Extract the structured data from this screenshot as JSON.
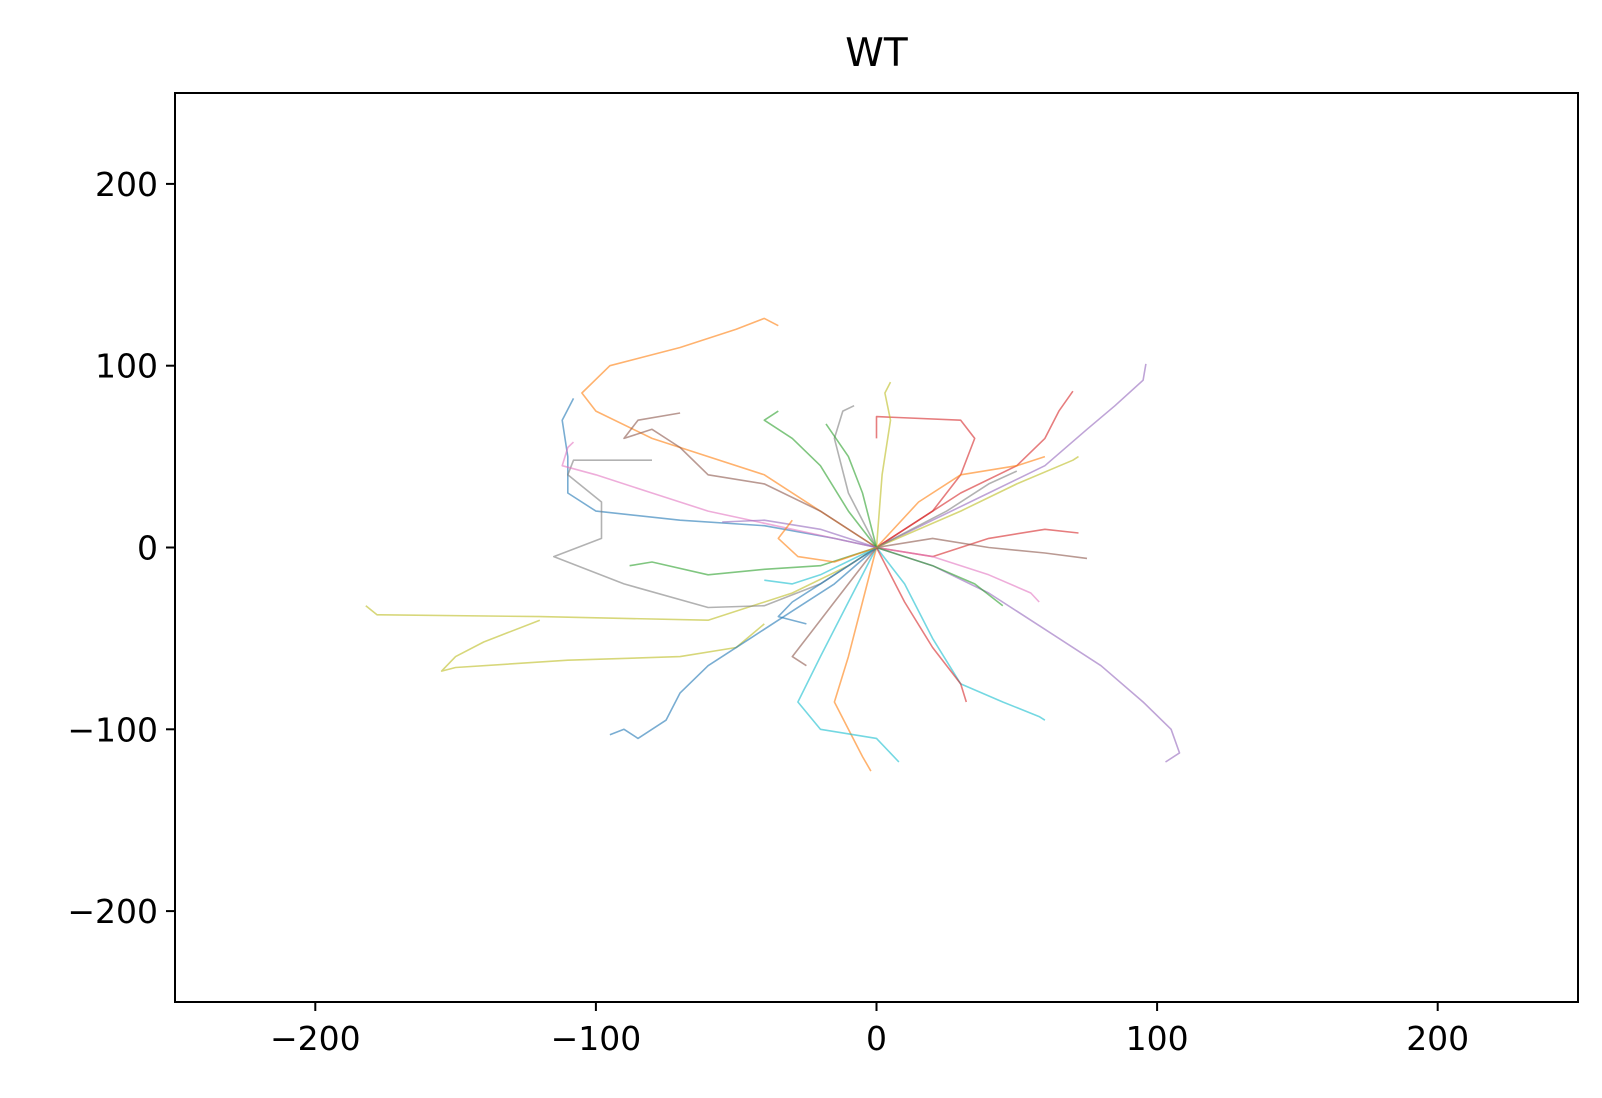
{
  "chart_data": {
    "type": "line",
    "title": "WT",
    "xlabel": "",
    "ylabel": "",
    "xlim": [
      -250,
      250
    ],
    "ylim": [
      -250,
      250
    ],
    "x_ticks": [
      -200,
      -100,
      0,
      100,
      200
    ],
    "y_ticks": [
      -200,
      -100,
      0,
      100,
      200
    ],
    "x_tick_labels": [
      "−200",
      "−100",
      "0",
      "100",
      "200"
    ],
    "y_tick_labels": [
      "−200",
      "−100",
      "0",
      "100",
      "200"
    ],
    "grid": false,
    "legend": "none",
    "series": [
      {
        "color": "#ff7f0e",
        "points": [
          [
            0,
            0
          ],
          [
            -10,
            10
          ],
          [
            -40,
            40
          ],
          [
            -80,
            60
          ],
          [
            -100,
            75
          ],
          [
            -105,
            85
          ],
          [
            -95,
            100
          ],
          [
            -70,
            110
          ],
          [
            -50,
            120
          ],
          [
            -40,
            126
          ],
          [
            -35,
            122
          ]
        ]
      },
      {
        "color": "#1f77b4",
        "points": [
          [
            0,
            0
          ],
          [
            -15,
            5
          ],
          [
            -40,
            12
          ],
          [
            -70,
            15
          ],
          [
            -100,
            20
          ],
          [
            -110,
            30
          ],
          [
            -110,
            50
          ],
          [
            -112,
            70
          ],
          [
            -108,
            82
          ]
        ]
      },
      {
        "color": "#bcbd22",
        "points": [
          [
            0,
            0
          ],
          [
            -10,
            -10
          ],
          [
            -30,
            -25
          ],
          [
            -60,
            -40
          ],
          [
            -120,
            -38
          ],
          [
            -178,
            -37
          ],
          [
            -182,
            -32
          ]
        ]
      },
      {
        "color": "#bcbd22",
        "points": [
          [
            -40,
            -42
          ],
          [
            -50,
            -55
          ],
          [
            -70,
            -60
          ],
          [
            -110,
            -62
          ],
          [
            -150,
            -66
          ],
          [
            -155,
            -68
          ],
          [
            -150,
            -60
          ],
          [
            -140,
            -52
          ],
          [
            -120,
            -40
          ]
        ]
      },
      {
        "color": "#1f77b4",
        "points": [
          [
            0,
            0
          ],
          [
            -15,
            -20
          ],
          [
            -30,
            -35
          ],
          [
            -45,
            -50
          ],
          [
            -60,
            -65
          ],
          [
            -70,
            -80
          ],
          [
            -75,
            -95
          ],
          [
            -85,
            -105
          ],
          [
            -90,
            -100
          ],
          [
            -95,
            -103
          ]
        ]
      },
      {
        "color": "#9467bd",
        "points": [
          [
            0,
            0
          ],
          [
            20,
            -10
          ],
          [
            40,
            -25
          ],
          [
            60,
            -45
          ],
          [
            80,
            -65
          ],
          [
            95,
            -85
          ],
          [
            105,
            -100
          ],
          [
            108,
            -113
          ],
          [
            103,
            -118
          ]
        ]
      },
      {
        "color": "#9467bd",
        "points": [
          [
            0,
            0
          ],
          [
            20,
            15
          ],
          [
            40,
            30
          ],
          [
            60,
            45
          ],
          [
            75,
            65
          ],
          [
            85,
            78
          ],
          [
            95,
            92
          ],
          [
            96,
            101
          ]
        ]
      },
      {
        "color": "#17becf",
        "points": [
          [
            0,
            0
          ],
          [
            10,
            -20
          ],
          [
            20,
            -50
          ],
          [
            30,
            -75
          ],
          [
            45,
            -85
          ],
          [
            58,
            -93
          ],
          [
            60,
            -95
          ]
        ]
      },
      {
        "color": "#ff7f0e",
        "points": [
          [
            0,
            0
          ],
          [
            -5,
            -30
          ],
          [
            -10,
            -60
          ],
          [
            -15,
            -85
          ],
          [
            -10,
            -100
          ],
          [
            -5,
            -115
          ],
          [
            -2,
            -123
          ]
        ]
      },
      {
        "color": "#17becf",
        "points": [
          [
            0,
            0
          ],
          [
            -10,
            -30
          ],
          [
            -20,
            -60
          ],
          [
            -28,
            -85
          ],
          [
            -20,
            -100
          ],
          [
            0,
            -105
          ],
          [
            8,
            -118
          ]
        ]
      },
      {
        "color": "#d62728",
        "points": [
          [
            0,
            0
          ],
          [
            20,
            20
          ],
          [
            30,
            40
          ],
          [
            35,
            60
          ],
          [
            30,
            70
          ],
          [
            0,
            72
          ],
          [
            0,
            60
          ]
        ]
      },
      {
        "color": "#d62728",
        "points": [
          [
            0,
            0
          ],
          [
            20,
            -5
          ],
          [
            40,
            5
          ],
          [
            60,
            10
          ],
          [
            72,
            8
          ]
        ]
      },
      {
        "color": "#d62728",
        "points": [
          [
            0,
            0
          ],
          [
            30,
            30
          ],
          [
            50,
            45
          ],
          [
            60,
            60
          ],
          [
            65,
            75
          ],
          [
            70,
            86
          ]
        ]
      },
      {
        "color": "#8c564b",
        "points": [
          [
            0,
            0
          ],
          [
            -20,
            20
          ],
          [
            -40,
            35
          ],
          [
            -60,
            40
          ],
          [
            -70,
            55
          ],
          [
            -80,
            65
          ],
          [
            -90,
            60
          ],
          [
            -85,
            70
          ],
          [
            -70,
            74
          ]
        ]
      },
      {
        "color": "#8c564b",
        "points": [
          [
            0,
            0
          ],
          [
            20,
            5
          ],
          [
            40,
            0
          ],
          [
            60,
            -3
          ],
          [
            75,
            -6
          ]
        ]
      },
      {
        "color": "#7f7f7f",
        "points": [
          [
            0,
            0
          ],
          [
            -20,
            -20
          ],
          [
            -40,
            -32
          ],
          [
            -60,
            -33
          ],
          [
            -90,
            -20
          ],
          [
            -115,
            -5
          ],
          [
            -98,
            5
          ],
          [
            -98,
            25
          ],
          [
            -110,
            40
          ],
          [
            -108,
            48
          ],
          [
            -80,
            48
          ]
        ]
      },
      {
        "color": "#7f7f7f",
        "points": [
          [
            0,
            0
          ],
          [
            -10,
            30
          ],
          [
            -15,
            60
          ],
          [
            -12,
            75
          ],
          [
            -8,
            78
          ]
        ]
      },
      {
        "color": "#e377c2",
        "points": [
          [
            0,
            0
          ],
          [
            -30,
            10
          ],
          [
            -60,
            20
          ],
          [
            -80,
            30
          ],
          [
            -100,
            40
          ],
          [
            -112,
            45
          ],
          [
            -110,
            55
          ],
          [
            -108,
            58
          ]
        ]
      },
      {
        "color": "#e377c2",
        "points": [
          [
            0,
            0
          ],
          [
            20,
            -5
          ],
          [
            40,
            -15
          ],
          [
            55,
            -25
          ],
          [
            58,
            -30
          ]
        ]
      },
      {
        "color": "#2ca02c",
        "points": [
          [
            0,
            0
          ],
          [
            -10,
            20
          ],
          [
            -20,
            45
          ],
          [
            -30,
            60
          ],
          [
            -40,
            70
          ],
          [
            -35,
            75
          ]
        ]
      },
      {
        "color": "#2ca02c",
        "points": [
          [
            0,
            0
          ],
          [
            -20,
            -10
          ],
          [
            -40,
            -12
          ],
          [
            -60,
            -15
          ],
          [
            -80,
            -8
          ],
          [
            -88,
            -10
          ]
        ]
      },
      {
        "color": "#2ca02c",
        "points": [
          [
            0,
            0
          ],
          [
            20,
            -10
          ],
          [
            35,
            -20
          ],
          [
            45,
            -32
          ]
        ]
      },
      {
        "color": "#ff7f0e",
        "points": [
          [
            0,
            0
          ],
          [
            15,
            25
          ],
          [
            30,
            40
          ],
          [
            50,
            45
          ],
          [
            60,
            50
          ]
        ]
      },
      {
        "color": "#bcbd22",
        "points": [
          [
            0,
            0
          ],
          [
            30,
            20
          ],
          [
            50,
            35
          ],
          [
            70,
            48
          ],
          [
            72,
            50
          ]
        ]
      },
      {
        "color": "#bcbd22",
        "points": [
          [
            0,
            0
          ],
          [
            2,
            40
          ],
          [
            5,
            70
          ],
          [
            3,
            85
          ],
          [
            5,
            91
          ]
        ]
      },
      {
        "color": "#8c564b",
        "points": [
          [
            0,
            0
          ],
          [
            -15,
            -30
          ],
          [
            -25,
            -50
          ],
          [
            -30,
            -60
          ],
          [
            -25,
            -65
          ]
        ]
      },
      {
        "color": "#d62728",
        "points": [
          [
            0,
            0
          ],
          [
            10,
            -30
          ],
          [
            20,
            -55
          ],
          [
            30,
            -75
          ],
          [
            32,
            -85
          ]
        ]
      },
      {
        "color": "#1f77b4",
        "points": [
          [
            0,
            0
          ],
          [
            -20,
            -20
          ],
          [
            -30,
            -30
          ],
          [
            -35,
            -38
          ],
          [
            -25,
            -42
          ]
        ]
      },
      {
        "color": "#17becf",
        "points": [
          [
            0,
            0
          ],
          [
            -20,
            -15
          ],
          [
            -30,
            -20
          ],
          [
            -40,
            -18
          ]
        ]
      },
      {
        "color": "#2ca02c",
        "points": [
          [
            0,
            0
          ],
          [
            -5,
            30
          ],
          [
            -10,
            50
          ],
          [
            -18,
            68
          ]
        ]
      },
      {
        "color": "#9467bd",
        "points": [
          [
            0,
            0
          ],
          [
            -20,
            10
          ],
          [
            -40,
            15
          ],
          [
            -55,
            14
          ]
        ]
      },
      {
        "color": "#7f7f7f",
        "points": [
          [
            0,
            0
          ],
          [
            25,
            20
          ],
          [
            40,
            35
          ],
          [
            50,
            42
          ]
        ]
      },
      {
        "color": "#ff7f0e",
        "points": [
          [
            0,
            0
          ],
          [
            -15,
            -8
          ],
          [
            -28,
            -5
          ],
          [
            -35,
            5
          ],
          [
            -30,
            15
          ]
        ]
      }
    ]
  }
}
